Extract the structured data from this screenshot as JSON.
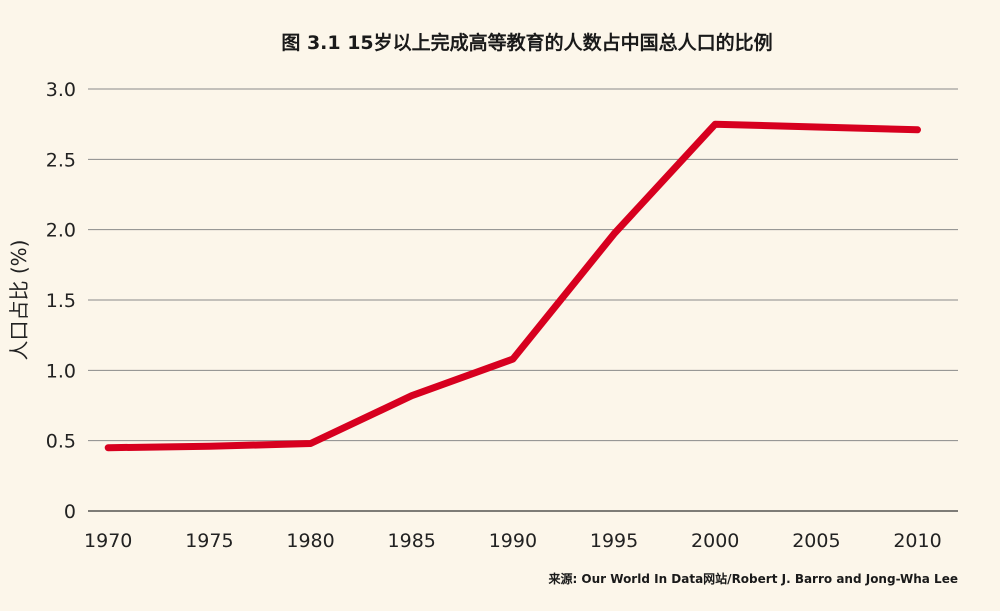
{
  "chart_data": {
    "type": "line",
    "title": "图 3.1 15岁以上完成高等教育的人数占中国总人口的比例",
    "xlabel": "",
    "ylabel": "人口占比 (%)",
    "x": [
      1970,
      1975,
      1980,
      1985,
      1990,
      1995,
      2000,
      2005,
      2010
    ],
    "x_tick_labels": [
      "1970",
      "1975",
      "1980",
      "1985",
      "1990",
      "1995",
      "2000",
      "2005",
      "2010"
    ],
    "y_ticks": [
      0,
      0.5,
      1.0,
      1.5,
      2.0,
      2.5,
      3.0
    ],
    "y_tick_labels": [
      "0",
      "0.5",
      "1.0",
      "1.5",
      "2.0",
      "2.5",
      "3.0"
    ],
    "xlim": [
      1969,
      2012
    ],
    "ylim": [
      0,
      3.0
    ],
    "grid": true,
    "series": [
      {
        "values": [
          0.45,
          0.46,
          0.48,
          0.82,
          1.08,
          1.97,
          2.75,
          2.73,
          2.71
        ],
        "color": "#d7001f"
      }
    ]
  },
  "source": "来源: Our World In Data网站/Robert J. Barro and Jong-Wha Lee"
}
